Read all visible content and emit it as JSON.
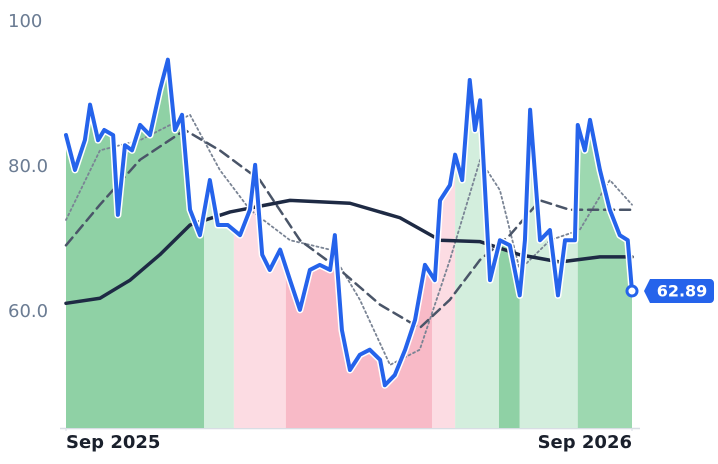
{
  "chart_data": {
    "type": "line",
    "xlim": [
      0,
      12
    ],
    "xticks": [
      {
        "value": 0,
        "label": "Sep 2025"
      },
      {
        "value": 12,
        "label": "Sep 2026"
      }
    ],
    "ylim": [
      44,
      100
    ],
    "yticks": [
      100,
      {
        "value": 80,
        "label": "80.0"
      },
      {
        "value": 60,
        "label": "60.0"
      }
    ],
    "grid": false,
    "regions": [
      {
        "from": 0,
        "to": 2.93,
        "color": "#8fd1a5"
      },
      {
        "from": 2.93,
        "to": 3.56,
        "color": "#d3eedd"
      },
      {
        "from": 3.56,
        "to": 4.66,
        "color": "#fcdce3"
      },
      {
        "from": 4.66,
        "to": 7.76,
        "color": "#f8bac7"
      },
      {
        "from": 7.76,
        "to": 8.25,
        "color": "#fcdce3"
      },
      {
        "from": 8.25,
        "to": 9.18,
        "color": "#d3eedd"
      },
      {
        "from": 9.18,
        "to": 9.62,
        "color": "#8fd1a5"
      },
      {
        "from": 9.62,
        "to": 10.85,
        "color": "#d3eedd"
      },
      {
        "from": 10.85,
        "to": 12,
        "color": "#9dd8b0"
      }
    ],
    "series": [
      {
        "color": "#2563eb",
        "style": "solid",
        "width": 4,
        "x": [
          0,
          0.19,
          0.4,
          0.51,
          0.68,
          0.81,
          1.0,
          1.1,
          1.25,
          1.4,
          1.57,
          1.78,
          1.99,
          2.16,
          2.31,
          2.46,
          2.63,
          2.84,
          3.05,
          3.22,
          3.43,
          3.69,
          3.9,
          4.01,
          4.16,
          4.32,
          4.54,
          4.75,
          4.96,
          5.17,
          5.38,
          5.6,
          5.7,
          5.85,
          6.02,
          6.23,
          6.44,
          6.66,
          6.76,
          6.97,
          7.19,
          7.4,
          7.61,
          7.82,
          7.93,
          8.14,
          8.25,
          8.4,
          8.56,
          8.67,
          8.78,
          8.99,
          9.2,
          9.41,
          9.62,
          9.73,
          9.84,
          10.05,
          10.26,
          10.43,
          10.58,
          10.79,
          10.85,
          11.0,
          11.11,
          11.32,
          11.53,
          11.74,
          11.91,
          12
        ],
        "values": [
          84.4,
          79.6,
          83.7,
          88.6,
          83.7,
          85.1,
          84.4,
          73.4,
          83.0,
          82.3,
          85.8,
          84.4,
          90.6,
          94.8,
          85.1,
          87.2,
          74.1,
          70.6,
          78.2,
          72.0,
          72.0,
          70.6,
          74.1,
          80.3,
          67.9,
          65.8,
          68.6,
          64.4,
          60.3,
          65.8,
          66.5,
          65.8,
          70.6,
          57.5,
          52.0,
          54.1,
          54.8,
          53.4,
          49.9,
          51.3,
          54.8,
          58.9,
          66.5,
          64.4,
          75.4,
          77.5,
          81.7,
          78.2,
          92.0,
          85.1,
          89.2,
          64.4,
          69.9,
          69.2,
          62.3,
          69.9,
          87.9,
          69.9,
          71.3,
          62.3,
          69.9,
          69.9,
          85.8,
          82.3,
          86.5,
          79.6,
          74.1,
          70.6,
          69.9,
          62.89
        ]
      },
      {
        "color": "#1e2a44",
        "style": "solid",
        "width": 3.5,
        "x": [
          0,
          0.72,
          1.36,
          1.99,
          2.63,
          3.48,
          4.75,
          6.02,
          7.08,
          7.93,
          8.78,
          9.62,
          10.47,
          11.32,
          12
        ],
        "values": [
          61.2,
          61.9,
          64.4,
          67.9,
          72.0,
          73.8,
          75.4,
          75.0,
          73.0,
          69.9,
          69.7,
          67.9,
          66.9,
          67.6,
          67.6
        ]
      },
      {
        "color": "#4a5568",
        "style": "dashed",
        "width": 2.5,
        "x": [
          0,
          0.72,
          1.57,
          2.52,
          3.26,
          4.11,
          4.96,
          5.81,
          6.66,
          7.5,
          8.14,
          8.78,
          9.41,
          10.05,
          10.68,
          11.32,
          12
        ],
        "values": [
          69.2,
          74.8,
          81.0,
          85.1,
          82.3,
          78.2,
          69.9,
          65.8,
          61.0,
          57.8,
          61.7,
          67.2,
          70.6,
          75.4,
          74.1,
          74.1,
          74.1
        ]
      },
      {
        "color": "#7a8494",
        "style": "dotted",
        "width": 1.8,
        "x": [
          0,
          0.72,
          1.57,
          2.63,
          3.26,
          3.9,
          4.75,
          5.6,
          6.23,
          6.87,
          7.5,
          8.14,
          8.78,
          9.2,
          9.62,
          10.26,
          10.89,
          11.53,
          12
        ],
        "values": [
          72.7,
          82.3,
          83.7,
          87.2,
          79.6,
          74.1,
          69.9,
          68.6,
          61.7,
          52.7,
          54.8,
          67.2,
          81.0,
          76.8,
          65.8,
          69.9,
          71.3,
          78.2,
          74.8
        ]
      }
    ]
  }
}
